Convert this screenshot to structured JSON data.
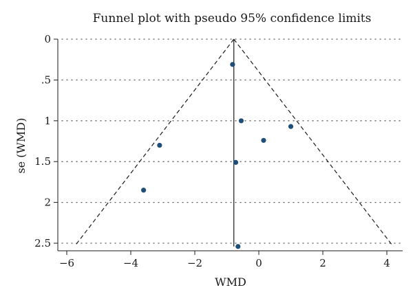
{
  "chart_data": {
    "type": "scatter",
    "title": "Funnel plot with pseudo 95% confidence limits",
    "xlabel": "WMD",
    "ylabel": "se (WMD)",
    "xlim": [
      -6.3,
      4.6
    ],
    "ylim": [
      2.55,
      0
    ],
    "y_reversed": true,
    "xticks": [
      -6,
      -4,
      -2,
      0,
      2,
      4
    ],
    "xtick_labels": [
      "−6",
      "−4",
      "−2",
      "0",
      "2",
      "4"
    ],
    "yticks": [
      0,
      0.5,
      1,
      1.5,
      2,
      2.5
    ],
    "ytick_labels": [
      "0",
      ".5",
      "1",
      "1.5",
      "2",
      "2.5"
    ],
    "grid": "horizontal dotted",
    "pooled_effect": -0.78,
    "confidence_limits": {
      "apex": [
        -0.78,
        0
      ],
      "lower_left": [
        -5.72,
        2.52
      ],
      "lower_right": [
        4.16,
        2.52
      ]
    },
    "points": [
      {
        "x": -0.82,
        "y": 0.31
      },
      {
        "x": -0.55,
        "y": 1.0
      },
      {
        "x": 1.0,
        "y": 1.07
      },
      {
        "x": 0.15,
        "y": 1.24
      },
      {
        "x": -3.1,
        "y": 1.3
      },
      {
        "x": -0.72,
        "y": 1.51
      },
      {
        "x": -3.6,
        "y": 1.85
      },
      {
        "x": -0.65,
        "y": 2.54
      }
    ],
    "colors": {
      "points": "#1f4e79",
      "lines": "#1a1a1a"
    }
  }
}
